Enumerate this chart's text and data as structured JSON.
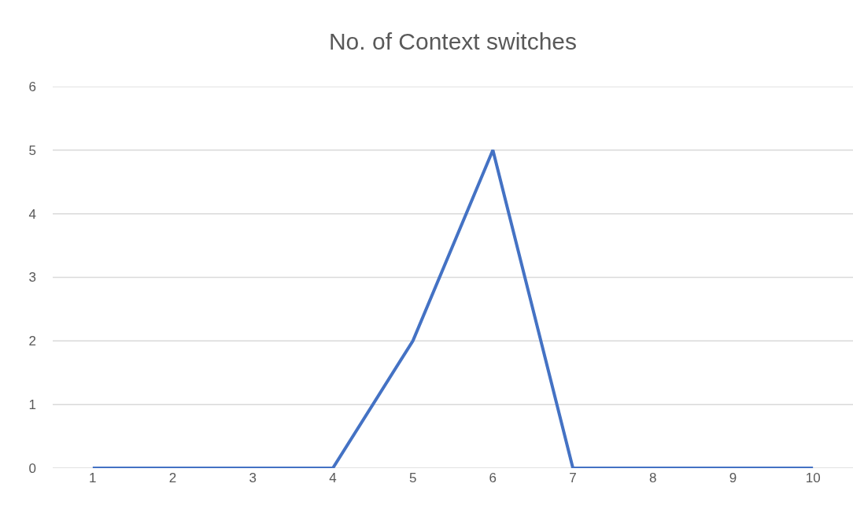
{
  "chart_data": {
    "type": "line",
    "title": "No. of Context switches",
    "categories": [
      "1",
      "2",
      "3",
      "4",
      "5",
      "6",
      "7",
      "8",
      "9",
      "10"
    ],
    "series": [
      {
        "color": "#4472c4",
        "values": [
          0,
          0,
          0,
          0,
          2,
          5,
          0,
          0,
          0,
          0
        ]
      }
    ],
    "ylim": [
      0,
      6
    ],
    "yticks": [
      0,
      1,
      2,
      3,
      4,
      5,
      6
    ],
    "grid": "y",
    "marker": "none",
    "line_style": "solid"
  }
}
